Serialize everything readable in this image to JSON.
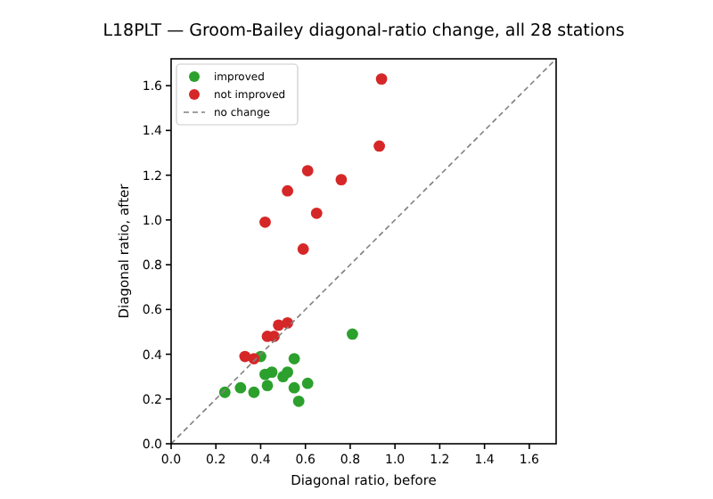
{
  "chart_data": {
    "type": "scatter",
    "title": "L18PLT — Groom-Bailey diagonal-ratio change, all 28 stations",
    "xlabel": "Diagonal ratio, before",
    "ylabel": "Diagonal ratio, after",
    "xlim": [
      0,
      1.72
    ],
    "ylim": [
      0,
      1.72
    ],
    "xticks": [
      {
        "value": 0,
        "label": "0.0"
      },
      0.2,
      0.4,
      0.6,
      0.8,
      {
        "value": 1,
        "label": "1.0"
      },
      1.2,
      1.4,
      1.6
    ],
    "yticks": [
      {
        "value": 0,
        "label": "0.0"
      },
      0.2,
      0.4,
      0.6,
      0.8,
      {
        "value": 1,
        "label": "1.0"
      },
      1.2,
      1.4,
      1.6
    ],
    "legend": "top left",
    "grid": false,
    "marker": "circle",
    "series": [
      {
        "name": "improved",
        "color": "#2ca02c",
        "x": [
          0.24,
          0.31,
          0.37,
          0.4,
          0.42,
          0.45,
          0.43,
          0.5,
          0.52,
          0.55,
          0.55,
          0.61,
          0.57,
          0.81
        ],
        "values": [
          0.23,
          0.25,
          0.23,
          0.39,
          0.31,
          0.32,
          0.26,
          0.3,
          0.32,
          0.38,
          0.25,
          0.27,
          0.19,
          0.49
        ]
      },
      {
        "name": "not improved",
        "color": "#d62728",
        "x": [
          0.94,
          0.93,
          0.61,
          0.76,
          0.52,
          0.65,
          0.42,
          0.59,
          0.33,
          0.37,
          0.43,
          0.46,
          0.48,
          0.52
        ],
        "values": [
          1.63,
          1.33,
          1.22,
          1.18,
          1.13,
          1.03,
          0.99,
          0.87,
          0.39,
          0.38,
          0.48,
          0.48,
          0.53,
          0.54
        ]
      },
      {
        "name": "no change",
        "type": "line",
        "color": "#808080",
        "line_style": "dashed",
        "marker": "none",
        "x": [
          0,
          1.72
        ],
        "values": [
          0,
          1.72
        ]
      }
    ]
  }
}
